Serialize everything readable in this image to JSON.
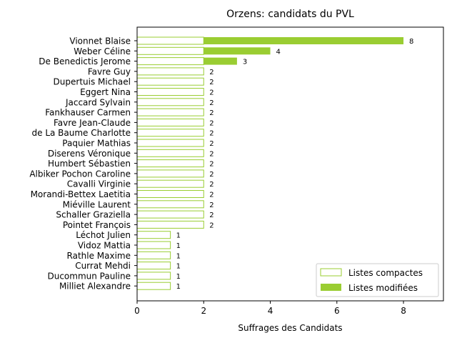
{
  "chart_data": {
    "type": "bar",
    "orientation": "horizontal",
    "stacked": true,
    "title": "Orzens: candidats du PVL",
    "xlabel": "Suffrages des Candidats",
    "ylabel": "",
    "xlim": [
      0,
      9.2
    ],
    "xticks": [
      0,
      2,
      4,
      6,
      8
    ],
    "grid": false,
    "legend_position": "bottom-right",
    "categories": [
      "Vionnet Blaise",
      "Weber Céline",
      "De Benedictis Jerome",
      "Favre Guy",
      "Dupertuis Michael",
      "Eggert Nina",
      "Jaccard Sylvain",
      "Fankhauser Carmen",
      "Favre Jean-Claude",
      "de La Baume Charlotte",
      "Paquier Mathias",
      "Diserens Véronique",
      "Humbert Sébastien",
      "Albiker Pochon Caroline",
      "Cavalli Virginie",
      "Morandi-Bettex Laetitia",
      "Miéville Laurent",
      "Schaller Graziella",
      "Pointet François",
      "Léchot Julien",
      "Vidoz Mattia",
      "Rathle Maxime",
      "Currat Mehdi",
      "Ducommun Pauline",
      "Milliet Alexandre"
    ],
    "series": [
      {
        "name": "Listes compactes",
        "style": "outline",
        "color": "#9acd32",
        "values": [
          2,
          2,
          2,
          2,
          2,
          2,
          2,
          2,
          2,
          2,
          2,
          2,
          2,
          2,
          2,
          2,
          2,
          2,
          2,
          1,
          1,
          1,
          1,
          1,
          1
        ]
      },
      {
        "name": "Listes modifiées",
        "style": "filled",
        "color": "#9acd32",
        "values": [
          6,
          2,
          1,
          0,
          0,
          0,
          0,
          0,
          0,
          0,
          0,
          0,
          0,
          0,
          0,
          0,
          0,
          0,
          0,
          0,
          0,
          0,
          0,
          0,
          0
        ]
      }
    ],
    "totals": [
      8,
      4,
      3,
      2,
      2,
      2,
      2,
      2,
      2,
      2,
      2,
      2,
      2,
      2,
      2,
      2,
      2,
      2,
      2,
      1,
      1,
      1,
      1,
      1,
      1
    ]
  }
}
